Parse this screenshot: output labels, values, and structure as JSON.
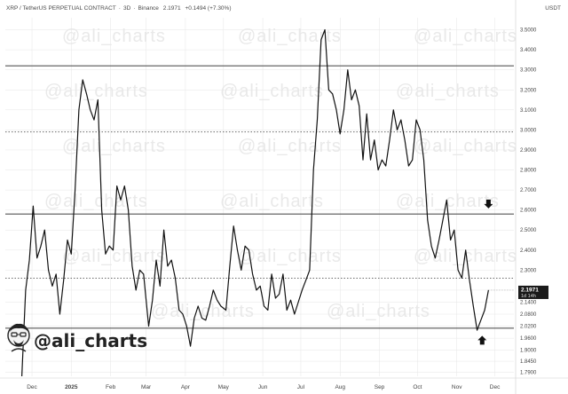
{
  "header": {
    "symbol": "XRP / TetherUS PERPETUAL CONTRACT",
    "timeframe": "3D",
    "exchange": "Binance",
    "price": "2.1971",
    "change": "+0.1494 (+7.30%)"
  },
  "currency": "USDT",
  "watermark": "@ali_charts",
  "handle": "@ali_charts",
  "price_tag": {
    "price": "2.1971",
    "countdown": "1d 14h"
  },
  "colors": {
    "line": "#111111",
    "grid": "#e6e6e6",
    "level": "#555555",
    "tag": "#1a1a1a",
    "watermark": "#e9e9e9"
  },
  "chart_data": {
    "type": "line",
    "x_tick_labels": [
      "Dec",
      "2025",
      "Feb",
      "Mar",
      "Apr",
      "May",
      "Jun",
      "Jul",
      "Aug",
      "Sep",
      "Oct",
      "Nov",
      "Dec"
    ],
    "y_tick_labels": [
      "3.5000",
      "3.4000",
      "3.3000",
      "3.2000",
      "3.1000",
      "3.0000",
      "2.9000",
      "2.8000",
      "2.7000",
      "2.6000",
      "2.5000",
      "2.4000",
      "2.3000",
      "2.2000",
      "2.1400",
      "2.0800",
      "2.0200",
      "1.9600",
      "1.9000",
      "1.8450",
      "1.7900"
    ],
    "ylim": [
      1.77,
      3.56
    ],
    "levels": [
      {
        "price": 3.32,
        "style": "solid"
      },
      {
        "price": 2.99,
        "style": "dotted"
      },
      {
        "price": 2.58,
        "style": "solid"
      },
      {
        "price": 2.26,
        "style": "dotted"
      },
      {
        "price": 2.01,
        "style": "solid"
      }
    ],
    "arrows": [
      {
        "direction": "down",
        "date": "2025-11-26",
        "price": 2.63
      },
      {
        "direction": "up",
        "date": "2025-11-21",
        "price": 1.95
      }
    ],
    "series": [
      {
        "points": [
          [
            "2024-11-23",
            1.77
          ],
          [
            "2024-11-26",
            2.2
          ],
          [
            "2024-11-29",
            2.35
          ],
          [
            "2024-12-02",
            2.62
          ],
          [
            "2024-12-05",
            2.36
          ],
          [
            "2024-12-08",
            2.42
          ],
          [
            "2024-12-11",
            2.5
          ],
          [
            "2024-12-14",
            2.3
          ],
          [
            "2024-12-17",
            2.22
          ],
          [
            "2024-12-20",
            2.28
          ],
          [
            "2024-12-23",
            2.08
          ],
          [
            "2024-12-26",
            2.25
          ],
          [
            "2024-12-29",
            2.45
          ],
          [
            "2025-01-01",
            2.38
          ],
          [
            "2025-01-04",
            2.7
          ],
          [
            "2025-01-07",
            3.1
          ],
          [
            "2025-01-10",
            3.25
          ],
          [
            "2025-01-13",
            3.18
          ],
          [
            "2025-01-16",
            3.1
          ],
          [
            "2025-01-19",
            3.05
          ],
          [
            "2025-01-22",
            3.15
          ],
          [
            "2025-01-25",
            2.6
          ],
          [
            "2025-01-28",
            2.38
          ],
          [
            "2025-01-31",
            2.42
          ],
          [
            "2025-02-03",
            2.4
          ],
          [
            "2025-02-06",
            2.72
          ],
          [
            "2025-02-09",
            2.65
          ],
          [
            "2025-02-12",
            2.72
          ],
          [
            "2025-02-15",
            2.6
          ],
          [
            "2025-02-18",
            2.32
          ],
          [
            "2025-02-21",
            2.2
          ],
          [
            "2025-02-24",
            2.3
          ],
          [
            "2025-02-27",
            2.28
          ],
          [
            "2025-03-03",
            2.02
          ],
          [
            "2025-03-06",
            2.15
          ],
          [
            "2025-03-09",
            2.35
          ],
          [
            "2025-03-12",
            2.22
          ],
          [
            "2025-03-15",
            2.5
          ],
          [
            "2025-03-18",
            2.32
          ],
          [
            "2025-03-21",
            2.35
          ],
          [
            "2025-03-24",
            2.26
          ],
          [
            "2025-03-27",
            2.1
          ],
          [
            "2025-03-30",
            2.08
          ],
          [
            "2025-04-02",
            2.02
          ],
          [
            "2025-04-05",
            1.92
          ],
          [
            "2025-04-08",
            2.06
          ],
          [
            "2025-04-11",
            2.12
          ],
          [
            "2025-04-14",
            2.06
          ],
          [
            "2025-04-17",
            2.05
          ],
          [
            "2025-04-20",
            2.12
          ],
          [
            "2025-04-23",
            2.2
          ],
          [
            "2025-04-26",
            2.15
          ],
          [
            "2025-04-29",
            2.12
          ],
          [
            "2025-05-03",
            2.1
          ],
          [
            "2025-05-06",
            2.32
          ],
          [
            "2025-05-09",
            2.52
          ],
          [
            "2025-05-12",
            2.4
          ],
          [
            "2025-05-15",
            2.3
          ],
          [
            "2025-05-18",
            2.42
          ],
          [
            "2025-05-21",
            2.4
          ],
          [
            "2025-05-24",
            2.28
          ],
          [
            "2025-05-27",
            2.2
          ],
          [
            "2025-05-30",
            2.22
          ],
          [
            "2025-06-02",
            2.12
          ],
          [
            "2025-06-05",
            2.1
          ],
          [
            "2025-06-08",
            2.28
          ],
          [
            "2025-06-11",
            2.16
          ],
          [
            "2025-06-14",
            2.18
          ],
          [
            "2025-06-17",
            2.28
          ],
          [
            "2025-06-20",
            2.1
          ],
          [
            "2025-06-23",
            2.15
          ],
          [
            "2025-06-26",
            2.08
          ],
          [
            "2025-06-29",
            2.14
          ],
          [
            "2025-07-02",
            2.2
          ],
          [
            "2025-07-05",
            2.25
          ],
          [
            "2025-07-08",
            2.3
          ],
          [
            "2025-07-11",
            2.8
          ],
          [
            "2025-07-14",
            3.05
          ],
          [
            "2025-07-17",
            3.45
          ],
          [
            "2025-07-20",
            3.5
          ],
          [
            "2025-07-23",
            3.2
          ],
          [
            "2025-07-26",
            3.18
          ],
          [
            "2025-07-29",
            3.1
          ],
          [
            "2025-08-01",
            2.98
          ],
          [
            "2025-08-04",
            3.1
          ],
          [
            "2025-08-07",
            3.3
          ],
          [
            "2025-08-10",
            3.15
          ],
          [
            "2025-08-13",
            3.2
          ],
          [
            "2025-08-16",
            3.12
          ],
          [
            "2025-08-19",
            2.85
          ],
          [
            "2025-08-22",
            3.08
          ],
          [
            "2025-08-25",
            2.85
          ],
          [
            "2025-08-28",
            2.95
          ],
          [
            "2025-08-31",
            2.8
          ],
          [
            "2025-09-03",
            2.85
          ],
          [
            "2025-09-06",
            2.82
          ],
          [
            "2025-09-09",
            2.95
          ],
          [
            "2025-09-12",
            3.1
          ],
          [
            "2025-09-15",
            3.0
          ],
          [
            "2025-09-18",
            3.05
          ],
          [
            "2025-09-21",
            2.95
          ],
          [
            "2025-09-24",
            2.82
          ],
          [
            "2025-09-27",
            2.85
          ],
          [
            "2025-09-30",
            3.05
          ],
          [
            "2025-10-03",
            3.0
          ],
          [
            "2025-10-06",
            2.85
          ],
          [
            "2025-10-09",
            2.55
          ],
          [
            "2025-10-12",
            2.42
          ],
          [
            "2025-10-15",
            2.36
          ],
          [
            "2025-10-18",
            2.45
          ],
          [
            "2025-10-21",
            2.55
          ],
          [
            "2025-10-24",
            2.65
          ],
          [
            "2025-10-27",
            2.45
          ],
          [
            "2025-10-30",
            2.5
          ],
          [
            "2025-11-02",
            2.3
          ],
          [
            "2025-11-05",
            2.26
          ],
          [
            "2025-11-08",
            2.4
          ],
          [
            "2025-11-11",
            2.25
          ],
          [
            "2025-11-14",
            2.12
          ],
          [
            "2025-11-17",
            2.0
          ],
          [
            "2025-11-20",
            2.05
          ],
          [
            "2025-11-23",
            2.1
          ],
          [
            "2025-11-26",
            2.2
          ]
        ]
      }
    ]
  }
}
